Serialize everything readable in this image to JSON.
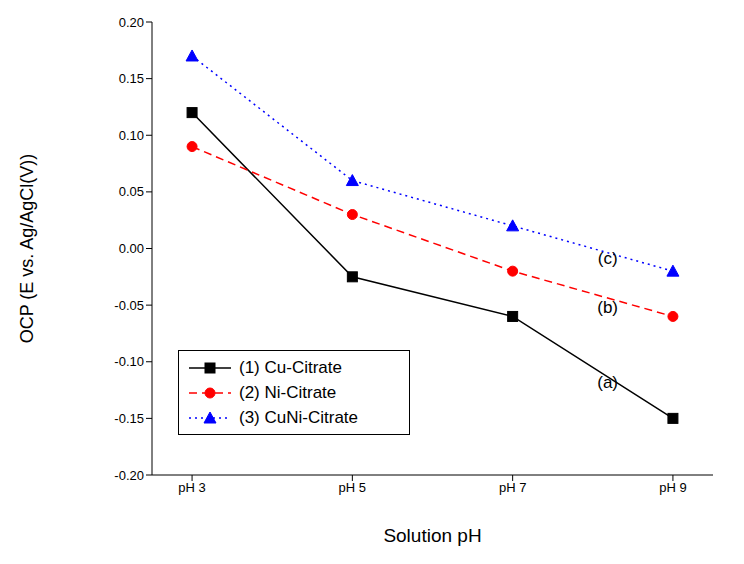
{
  "chart_data": {
    "type": "line",
    "x_label": "Solution pH",
    "y_label": "OCP (E vs. Ag/AgCl(V))",
    "categories": [
      "pH 3",
      "pH 5",
      "pH 7",
      "pH 9"
    ],
    "ylim": [
      -0.2,
      0.2
    ],
    "yticks": [
      {
        "value": -0.2,
        "label": "-0.20"
      },
      {
        "value": -0.15,
        "label": "-0.15"
      },
      {
        "value": -0.1,
        "label": "-0.10"
      },
      {
        "value": -0.05,
        "label": "-0.05"
      },
      {
        "value": 0,
        "label": "0.00"
      },
      {
        "value": 0.05,
        "label": "0.05"
      },
      {
        "value": 0.1,
        "label": "0.10"
      },
      {
        "value": 0.15,
        "label": "0.15"
      },
      {
        "value": 0.2,
        "label": "0.20"
      }
    ],
    "legend": "lower left",
    "series": [
      {
        "name": "(1) Cu-Citrate",
        "color": "#000000",
        "marker": "square",
        "line_style": "solid",
        "annotation": "(a)",
        "values": [
          0.12,
          -0.025,
          -0.06,
          -0.15
        ]
      },
      {
        "name": "(2) Ni-Citrate",
        "color": "#ff0000",
        "marker": "circle",
        "line_style": "dashed",
        "annotation": "(b)",
        "values": [
          0.09,
          0.03,
          -0.02,
          -0.06
        ]
      },
      {
        "name": "(3) CuNi-Citrate",
        "color": "#0000ff",
        "marker": "triangle",
        "line_style": "dotted",
        "annotation": "(c)",
        "values": [
          0.17,
          0.06,
          0.02,
          -0.02
        ]
      }
    ]
  }
}
